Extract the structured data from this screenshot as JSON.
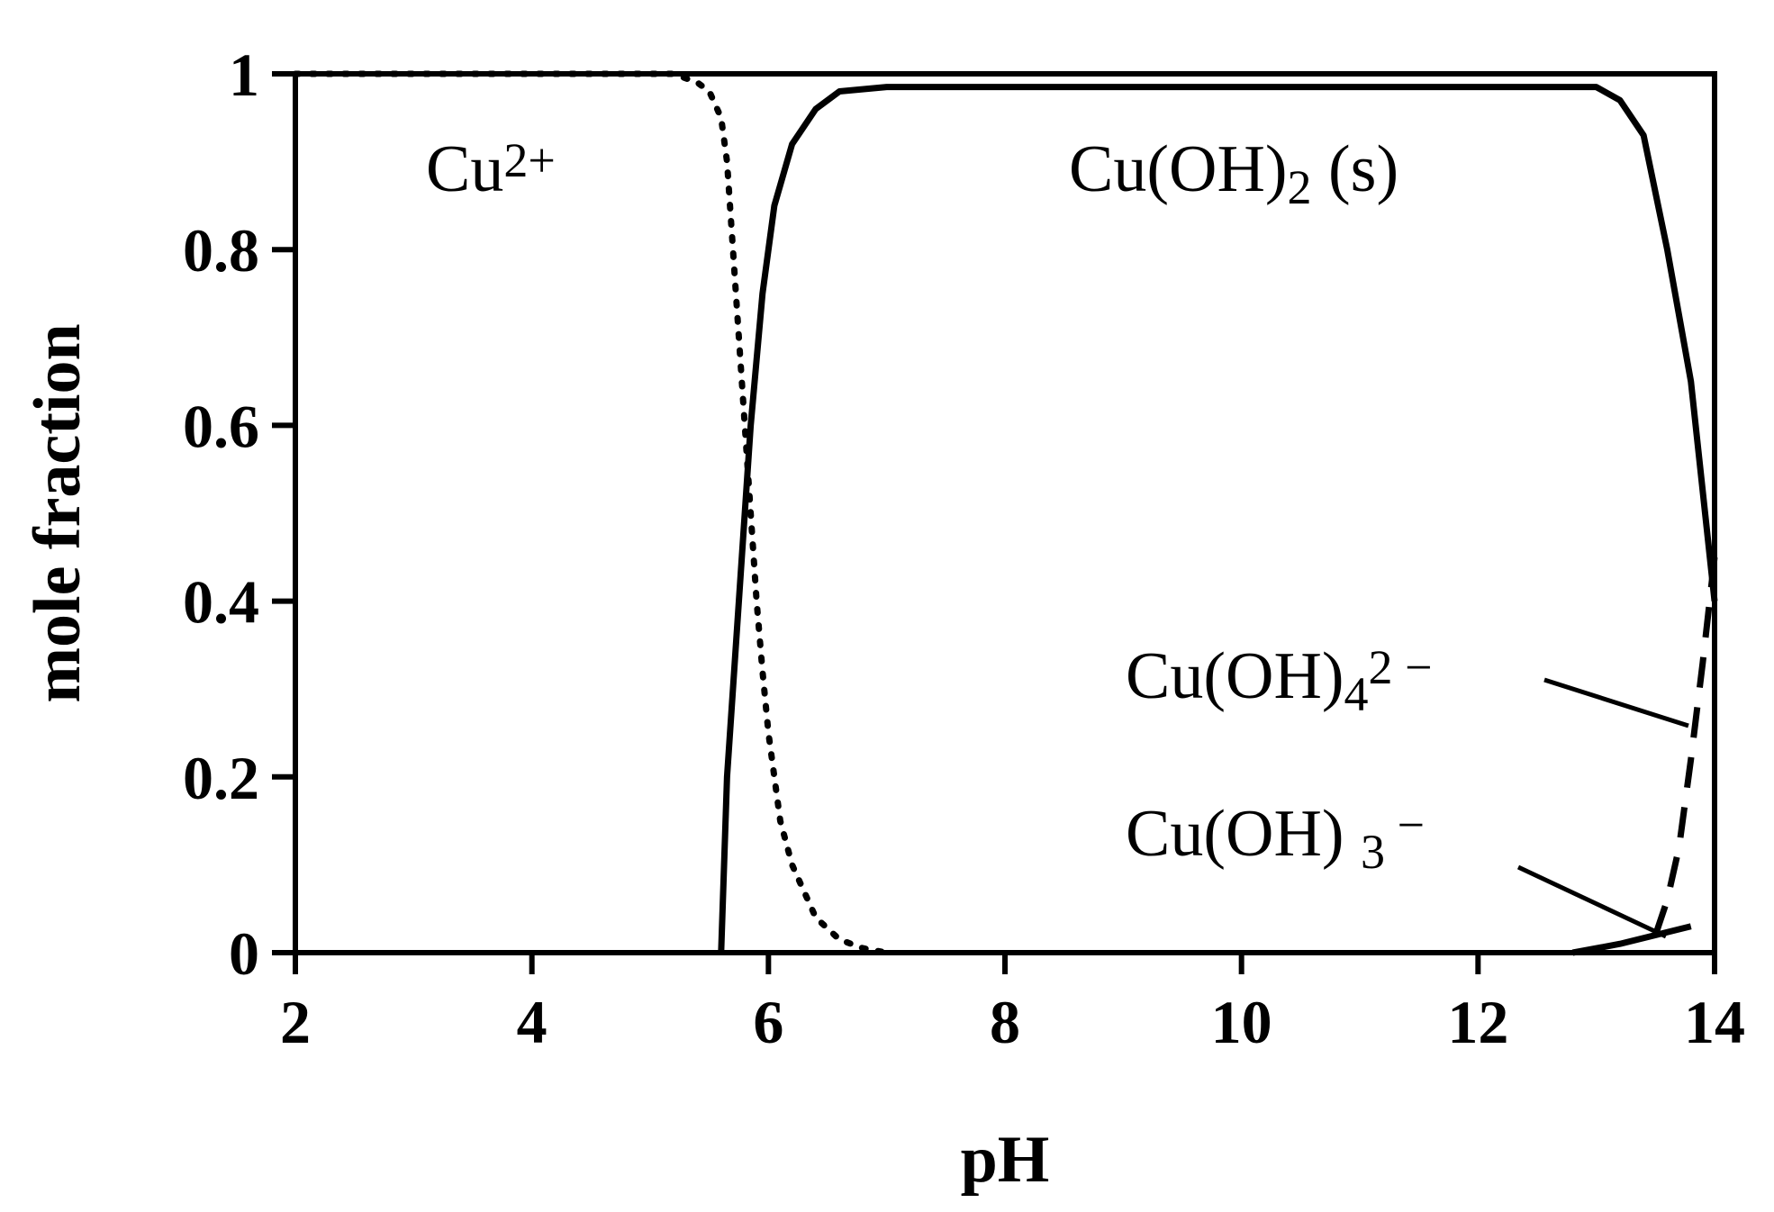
{
  "chart_data": {
    "type": "line",
    "x_label": "pH",
    "y_label": "mole fraction",
    "xlim": [
      2,
      14
    ],
    "ylim": [
      0,
      1
    ],
    "xticks": [
      2,
      4,
      6,
      8,
      10,
      12,
      14
    ],
    "yticks": [
      0,
      0.2,
      0.4,
      0.6,
      0.8,
      1
    ],
    "grid": false,
    "series": [
      {
        "color": "#000000",
        "style": "dotted",
        "x": [
          2,
          5.2,
          5.4,
          5.5,
          5.6,
          5.65,
          5.7,
          5.75,
          5.8,
          5.85,
          5.9,
          5.95,
          6.0,
          6.1,
          6.2,
          6.4,
          6.6,
          6.8,
          7
        ],
        "values": [
          1,
          1,
          0.99,
          0.98,
          0.95,
          0.9,
          0.8,
          0.7,
          0.6,
          0.5,
          0.4,
          0.32,
          0.25,
          0.15,
          0.1,
          0.04,
          0.015,
          0.005,
          0
        ]
      },
      {
        "color": "#000000",
        "style": "solid",
        "x": [
          5.6,
          5.65,
          5.75,
          5.85,
          5.95,
          6.05,
          6.2,
          6.4,
          6.6,
          7,
          13,
          13.2,
          13.4,
          13.6,
          13.8,
          14
        ],
        "values": [
          0,
          0.2,
          0.4,
          0.6,
          0.75,
          0.85,
          0.92,
          0.96,
          0.98,
          0.985,
          0.985,
          0.97,
          0.93,
          0.8,
          0.65,
          0.4
        ]
      },
      {
        "color": "#000000",
        "style": "dashed",
        "x": [
          13.5,
          13.6,
          13.7,
          13.8,
          13.9,
          14
        ],
        "values": [
          0.02,
          0.06,
          0.12,
          0.22,
          0.33,
          0.45
        ]
      },
      {
        "color": "#000000",
        "style": "solid",
        "x": [
          12.8,
          13.2,
          13.5,
          13.8
        ],
        "values": [
          0,
          0.01,
          0.02,
          0.03
        ]
      }
    ],
    "annotations": [
      {
        "parts": [
          {
            "text": "Cu"
          },
          {
            "text": "2+",
            "script": "sup"
          }
        ]
      },
      {
        "parts": [
          {
            "text": "Cu(OH)"
          },
          {
            "text": "2",
            "script": "sub"
          },
          {
            "text": " (s)"
          }
        ]
      },
      {
        "parts": [
          {
            "text": "Cu(OH)"
          },
          {
            "text": "4",
            "script": "sub"
          },
          {
            "text": "2 −",
            "script": "sup"
          }
        ]
      },
      {
        "parts": [
          {
            "text": "Cu(OH) "
          },
          {
            "text": "3",
            "script": "sub"
          },
          {
            "text": " −",
            "script": "sup"
          }
        ]
      }
    ]
  }
}
